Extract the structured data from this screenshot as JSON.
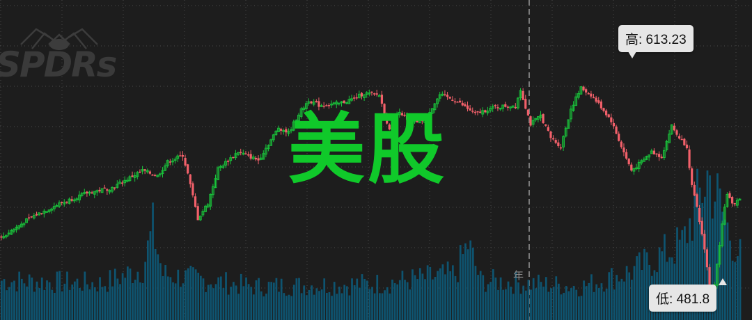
{
  "watermark": {
    "text": "美股",
    "color": "#10c92a"
  },
  "logo": {
    "text": "SPDRs",
    "icon": "spider-icon"
  },
  "callouts": {
    "high": "高: 613.23",
    "low": "低: 481.8"
  },
  "year_divider_label": "年",
  "colors": {
    "up": "#19c23a",
    "down": "#f2606a",
    "volume": "#0e5470",
    "background": "#1d1d1d",
    "gridline": "#4a4a4a"
  },
  "chart_data": {
    "type": "candlestick",
    "title": "",
    "price_range": [
      470,
      640
    ],
    "high": 613.23,
    "low": 481.8,
    "grid": true,
    "volume": true,
    "series": [
      {
        "name": "",
        "close_anchors": [
          [
            0,
            526
          ],
          [
            12,
            538
          ],
          [
            22,
            545
          ],
          [
            34,
            552
          ],
          [
            44,
            555
          ],
          [
            56,
            565
          ],
          [
            62,
            562
          ],
          [
            66,
            570
          ],
          [
            72,
            574
          ],
          [
            74,
            563
          ],
          [
            78,
            537
          ],
          [
            82,
            546
          ],
          [
            86,
            566
          ],
          [
            94,
            576
          ],
          [
            102,
            571
          ],
          [
            110,
            590
          ],
          [
            114,
            587
          ],
          [
            118,
            598
          ],
          [
            122,
            606
          ],
          [
            126,
            603
          ],
          [
            134,
            604
          ],
          [
            140,
            607
          ],
          [
            144,
            610
          ],
          [
            150,
            609
          ],
          [
            154,
            588
          ],
          [
            158,
            600
          ],
          [
            162,
            592
          ],
          [
            168,
            595
          ],
          [
            174,
            609
          ],
          [
            180,
            606
          ],
          [
            188,
            598
          ],
          [
            196,
            602
          ],
          [
            204,
            603
          ],
          [
            206,
            612
          ],
          [
            210,
            592
          ],
          [
            214,
            597
          ],
          [
            218,
            584
          ],
          [
            222,
            579
          ],
          [
            226,
            601
          ],
          [
            230,
            613
          ],
          [
            234,
            609
          ],
          [
            238,
            602
          ],
          [
            242,
            594
          ],
          [
            246,
            579
          ],
          [
            250,
            565
          ],
          [
            254,
            570
          ],
          [
            258,
            576
          ],
          [
            262,
            573
          ],
          [
            266,
            591
          ],
          [
            268,
            586
          ],
          [
            272,
            579
          ],
          [
            274,
            556
          ],
          [
            276,
            543
          ],
          [
            279,
            520
          ],
          [
            282,
            486
          ],
          [
            284,
            510
          ],
          [
            286,
            535
          ],
          [
            288,
            552
          ],
          [
            290,
            545
          ],
          [
            293,
            549
          ]
        ]
      }
    ],
    "volume_anchors": [
      [
        0,
        0.26
      ],
      [
        40,
        0.24
      ],
      [
        56,
        0.34
      ],
      [
        60,
        0.6
      ],
      [
        64,
        0.3
      ],
      [
        100,
        0.22
      ],
      [
        150,
        0.24
      ],
      [
        180,
        0.3
      ],
      [
        185,
        0.5
      ],
      [
        190,
        0.26
      ],
      [
        230,
        0.22
      ],
      [
        250,
        0.32
      ],
      [
        270,
        0.5
      ],
      [
        280,
        0.95
      ],
      [
        284,
        0.8
      ],
      [
        288,
        0.6
      ],
      [
        293,
        0.42
      ]
    ]
  }
}
